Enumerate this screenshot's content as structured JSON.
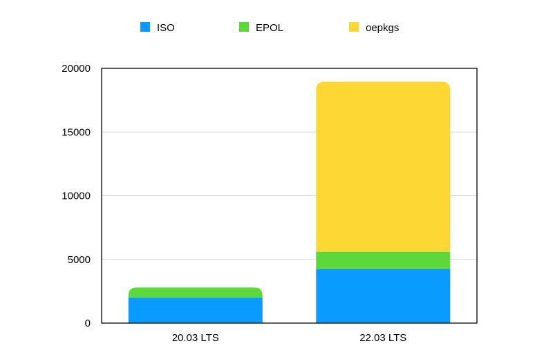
{
  "chart_data": {
    "type": "bar",
    "stacked": true,
    "categories": [
      "20.03 LTS",
      "22.03 LTS"
    ],
    "series": [
      {
        "name": "ISO",
        "color": "#0A9BFF",
        "values": [
          2000,
          4250
        ]
      },
      {
        "name": "EPOL",
        "color": "#5CD83A",
        "values": [
          800,
          1350
        ]
      },
      {
        "name": "oepkgs",
        "color": "#FDD835",
        "values": [
          0,
          13350
        ]
      }
    ],
    "ylim": [
      0,
      20000
    ],
    "yticks": [
      "0",
      "5000",
      "10000",
      "15000",
      "20000"
    ],
    "ytick_values": [
      0,
      5000,
      10000,
      15000,
      20000
    ],
    "grid": true,
    "legend": "top",
    "title": "",
    "xlabel": "",
    "ylabel": ""
  }
}
